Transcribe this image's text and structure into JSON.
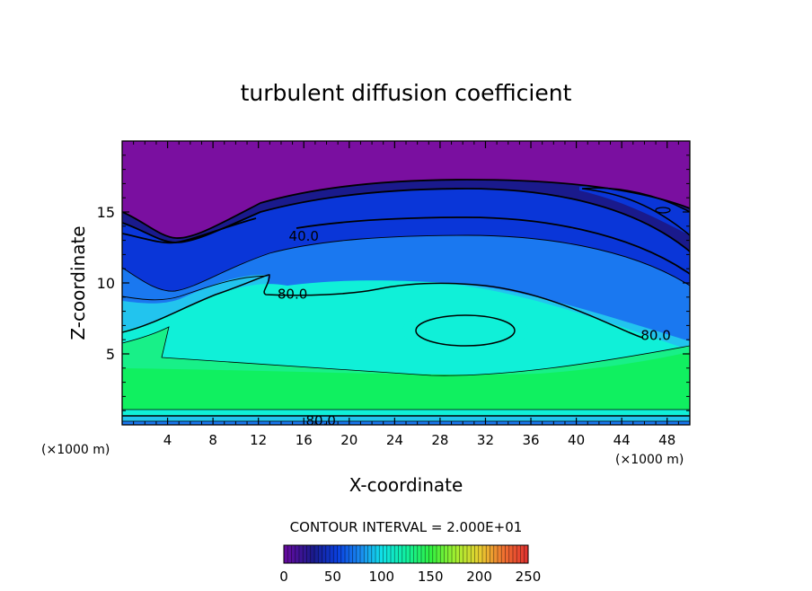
{
  "chart_data": {
    "type": "heatmap",
    "title": "turbulent diffusion coefficient",
    "xlabel": "X-coordinate",
    "ylabel": "Z-coordinate",
    "x_unit_left": "(×1000 m)",
    "x_unit_right": "(×1000 m)",
    "xlim": [
      0,
      50
    ],
    "ylim": [
      0,
      20
    ],
    "x_ticks": [
      4,
      8,
      12,
      16,
      20,
      24,
      28,
      32,
      36,
      40,
      44,
      48
    ],
    "y_ticks": [
      5,
      10,
      15
    ],
    "contour_interval_text": "CONTOUR INTERVAL = 2.000E+01",
    "contour_labels": [
      {
        "text": "40.0",
        "x": 16,
        "z": 13.3
      },
      {
        "text": "80.0",
        "x": 15,
        "z": 9.2
      },
      {
        "text": "80.0",
        "x": 47,
        "z": 6.3
      },
      {
        "text": "80.0",
        "x": 17.5,
        "z": 0.3
      }
    ],
    "colorbar": {
      "min": 0,
      "max": 250,
      "ticks": [
        0,
        50,
        100,
        150,
        200,
        250
      ]
    },
    "colors": {
      "c0": "#7a0fa0",
      "c20": "#1a1a8c",
      "c40": "#0a36d8",
      "c60": "#1a78f0",
      "c80": "#22c4ee",
      "c100": "#10f0d8",
      "c120": "#18f088",
      "c140": "#10f060"
    }
  }
}
